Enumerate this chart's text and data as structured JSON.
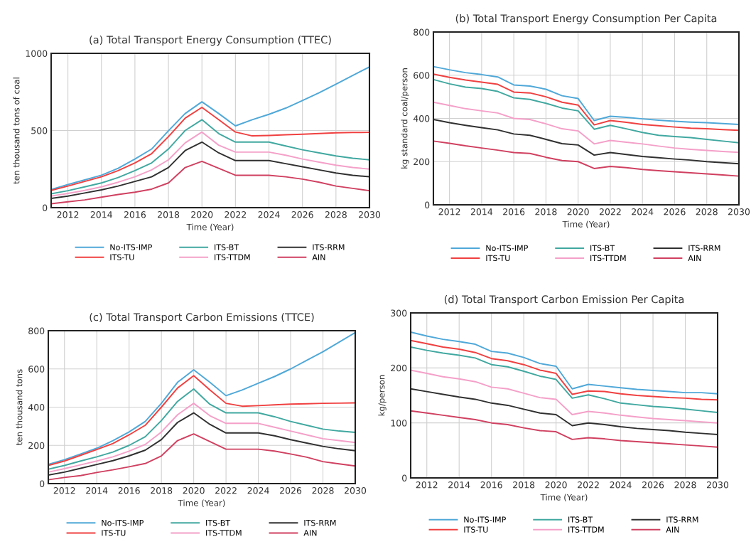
{
  "chart_data": [
    {
      "type": "line",
      "title": "(a) Total Transport Energy Consumption (TTEC)",
      "xlabel": "Time (Year)",
      "ylabel": "ten thousand tons of coal",
      "x": [
        2011,
        2012,
        2013,
        2014,
        2015,
        2016,
        2017,
        2018,
        2019,
        2020,
        2021,
        2022,
        2023,
        2024,
        2025,
        2026,
        2027,
        2028,
        2029,
        2030
      ],
      "xlim": [
        2011,
        2030
      ],
      "xticks": [
        2012,
        2014,
        2016,
        2018,
        2020,
        2022,
        2024,
        2026,
        2028,
        2030
      ],
      "ylim": [
        0,
        1000
      ],
      "yticks": [
        0,
        500,
        1000
      ],
      "grid": true,
      "legend": "bottom",
      "line_style": "solid",
      "series": [
        {
          "name": "No-ITS-IMP",
          "color": "#4fa8d8",
          "values": [
            118,
            150,
            180,
            210,
            255,
            315,
            380,
            498,
            610,
            686,
            610,
            530,
            570,
            605,
            645,
            694,
            745,
            800,
            857,
            912
          ]
        },
        {
          "name": "ITS-TU",
          "color": "#f04040",
          "values": [
            112,
            140,
            170,
            200,
            240,
            290,
            350,
            460,
            580,
            650,
            570,
            490,
            465,
            468,
            472,
            476,
            480,
            485,
            487,
            488
          ]
        },
        {
          "name": "ITS-BT",
          "color": "#40a8a0",
          "values": [
            90,
            110,
            135,
            160,
            195,
            240,
            290,
            380,
            500,
            570,
            480,
            425,
            425,
            425,
            400,
            375,
            355,
            335,
            320,
            310
          ]
        },
        {
          "name": "ITS-TTDM",
          "color": "#f4a0c8",
          "values": [
            75,
            92,
            112,
            135,
            165,
            200,
            245,
            310,
            420,
            490,
            405,
            360,
            360,
            360,
            340,
            315,
            295,
            275,
            260,
            250
          ]
        },
        {
          "name": "ITS-RRM",
          "color": "#303030",
          "values": [
            60,
            75,
            95,
            115,
            140,
            170,
            200,
            260,
            370,
            425,
            355,
            305,
            305,
            305,
            285,
            265,
            245,
            225,
            210,
            200
          ]
        },
        {
          "name": "AIN",
          "color": "#d04060",
          "values": [
            25,
            38,
            50,
            68,
            85,
            100,
            120,
            160,
            260,
            300,
            255,
            210,
            210,
            210,
            200,
            185,
            165,
            140,
            125,
            110
          ]
        }
      ]
    },
    {
      "type": "line",
      "title": "(b) Total Transport Energy Consumption Per Capita",
      "xlabel": "Time (Year)",
      "ylabel": "kg standard coal/person",
      "x": [
        2011,
        2012,
        2013,
        2014,
        2015,
        2016,
        2017,
        2018,
        2019,
        2020,
        2021,
        2022,
        2023,
        2024,
        2025,
        2026,
        2027,
        2028,
        2029,
        2030
      ],
      "xlim": [
        2011,
        2030
      ],
      "xticks": [
        2012,
        2014,
        2016,
        2018,
        2020,
        2022,
        2024,
        2026,
        2028,
        2030
      ],
      "ylim": [
        0,
        800
      ],
      "yticks": [
        0,
        200,
        400,
        600,
        800
      ],
      "grid": true,
      "legend": "bottom",
      "line_style": "solid",
      "series": [
        {
          "name": "No-ITS-IMP",
          "color": "#4fa8d8",
          "values": [
            640,
            625,
            612,
            603,
            592,
            555,
            550,
            535,
            505,
            492,
            390,
            410,
            405,
            398,
            392,
            387,
            383,
            380,
            376,
            372
          ]
        },
        {
          "name": "ITS-TU",
          "color": "#f04040",
          "values": [
            605,
            590,
            578,
            568,
            558,
            522,
            518,
            500,
            475,
            462,
            370,
            390,
            382,
            372,
            366,
            360,
            355,
            352,
            348,
            345
          ]
        },
        {
          "name": "ITS-BT",
          "color": "#40a8a0",
          "values": [
            580,
            560,
            545,
            538,
            525,
            495,
            488,
            470,
            448,
            435,
            350,
            368,
            352,
            335,
            322,
            316,
            311,
            303,
            295,
            287
          ]
        },
        {
          "name": "ITS-TTDM",
          "color": "#f4a0c8",
          "values": [
            475,
            460,
            445,
            435,
            425,
            400,
            395,
            375,
            352,
            342,
            282,
            298,
            290,
            282,
            272,
            263,
            257,
            252,
            247,
            243
          ]
        },
        {
          "name": "ITS-RRM",
          "color": "#303030",
          "values": [
            395,
            380,
            368,
            357,
            347,
            328,
            322,
            303,
            283,
            277,
            230,
            242,
            233,
            224,
            218,
            212,
            207,
            200,
            195,
            190
          ]
        },
        {
          "name": "AIN",
          "color": "#d04060",
          "values": [
            295,
            285,
            273,
            263,
            253,
            242,
            238,
            220,
            205,
            200,
            168,
            178,
            172,
            164,
            158,
            153,
            148,
            143,
            138,
            133
          ]
        }
      ]
    },
    {
      "type": "line",
      "title": "(c) Total Transport Carbon Emissions (TTCE)",
      "xlabel": "Time (Year)",
      "ylabel": "ten thousand tons",
      "x": [
        2011,
        2012,
        2013,
        2014,
        2015,
        2016,
        2017,
        2018,
        2019,
        2020,
        2021,
        2022,
        2023,
        2024,
        2025,
        2026,
        2027,
        2028,
        2029,
        2030
      ],
      "xlim": [
        2011,
        2030
      ],
      "xticks": [
        2012,
        2014,
        2016,
        2018,
        2020,
        2022,
        2024,
        2026,
        2028,
        2030
      ],
      "ylim": [
        0,
        800
      ],
      "yticks": [
        0,
        200,
        400,
        600,
        800
      ],
      "grid": true,
      "legend": "bottom",
      "line_style": "solid",
      "series": [
        {
          "name": "No-ITS-IMP",
          "color": "#4fa8d8",
          "values": [
            100,
            125,
            155,
            185,
            225,
            270,
            325,
            420,
            530,
            595,
            530,
            460,
            490,
            525,
            560,
            600,
            645,
            690,
            740,
            790
          ]
        },
        {
          "name": "ITS-TU",
          "color": "#f04040",
          "values": [
            95,
            118,
            148,
            178,
            210,
            255,
            305,
            400,
            500,
            565,
            490,
            420,
            405,
            408,
            412,
            416,
            418,
            420,
            421,
            422
          ]
        },
        {
          "name": "ITS-BT",
          "color": "#40a8a0",
          "values": [
            75,
            95,
            118,
            140,
            165,
            200,
            245,
            330,
            430,
            495,
            415,
            370,
            370,
            370,
            350,
            325,
            305,
            285,
            275,
            268
          ]
        },
        {
          "name": "ITS-TTDM",
          "color": "#f4a0c8",
          "values": [
            60,
            78,
            98,
            118,
            140,
            170,
            205,
            270,
            360,
            420,
            355,
            315,
            315,
            315,
            295,
            275,
            255,
            235,
            225,
            215
          ]
        },
        {
          "name": "ITS-RRM",
          "color": "#303030",
          "values": [
            45,
            60,
            80,
            100,
            120,
            145,
            175,
            230,
            320,
            370,
            310,
            265,
            265,
            265,
            250,
            230,
            212,
            195,
            182,
            172
          ]
        },
        {
          "name": "AIN",
          "color": "#d04060",
          "values": [
            20,
            32,
            42,
            58,
            72,
            88,
            105,
            145,
            225,
            260,
            220,
            180,
            180,
            180,
            170,
            155,
            138,
            115,
            103,
            92
          ]
        }
      ]
    },
    {
      "type": "line",
      "title": "(d) Total Transport Carbon Emission Per Capita",
      "xlabel": "Time (Year)",
      "ylabel": "kg/person",
      "x": [
        2011,
        2012,
        2013,
        2014,
        2015,
        2016,
        2017,
        2018,
        2019,
        2020,
        2021,
        2022,
        2023,
        2024,
        2025,
        2026,
        2027,
        2028,
        2029,
        2030
      ],
      "xlim": [
        2011,
        2030
      ],
      "xticks": [
        2012,
        2014,
        2016,
        2018,
        2020,
        2022,
        2024,
        2026,
        2028,
        2030
      ],
      "ylim": [
        0,
        300
      ],
      "yticks": [
        0,
        100,
        200,
        300
      ],
      "grid": true,
      "legend": "bottom",
      "line_style": "solid",
      "series": [
        {
          "name": "No-ITS-IMP",
          "color": "#4fa8d8",
          "values": [
            265,
            258,
            252,
            248,
            243,
            230,
            227,
            219,
            208,
            203,
            162,
            170,
            167,
            164,
            161,
            159,
            157,
            155,
            155,
            153
          ]
        },
        {
          "name": "ITS-TU",
          "color": "#f04040",
          "values": [
            250,
            244,
            238,
            234,
            228,
            217,
            213,
            206,
            196,
            190,
            152,
            158,
            157,
            153,
            150,
            148,
            146,
            145,
            143,
            142
          ]
        },
        {
          "name": "ITS-BT",
          "color": "#40a8a0",
          "values": [
            238,
            232,
            227,
            223,
            218,
            206,
            202,
            194,
            185,
            179,
            145,
            151,
            144,
            136,
            133,
            130,
            128,
            125,
            122,
            119
          ]
        },
        {
          "name": "ITS-TTDM",
          "color": "#f4a0c8",
          "values": [
            196,
            190,
            184,
            180,
            175,
            165,
            162,
            154,
            146,
            143,
            115,
            121,
            118,
            114,
            111,
            108,
            106,
            104,
            102,
            100
          ]
        },
        {
          "name": "ITS-RRM",
          "color": "#303030",
          "values": [
            162,
            157,
            152,
            147,
            143,
            136,
            132,
            125,
            118,
            115,
            95,
            100,
            97,
            93,
            90,
            88,
            86,
            83,
            81,
            79
          ]
        },
        {
          "name": "AIN",
          "color": "#d04060",
          "values": [
            122,
            118,
            114,
            110,
            106,
            100,
            97,
            91,
            86,
            84,
            70,
            73,
            71,
            68,
            66,
            64,
            62,
            60,
            58,
            56
          ]
        }
      ]
    }
  ]
}
